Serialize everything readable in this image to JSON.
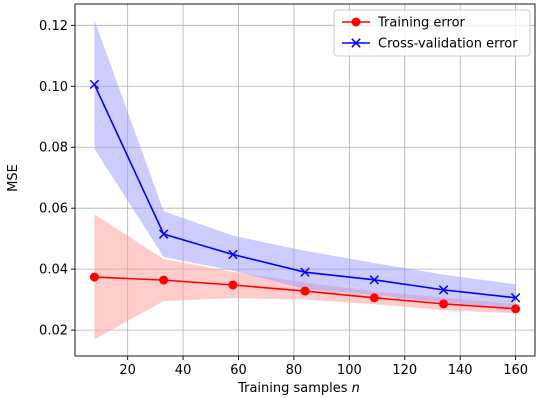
{
  "chart_data": {
    "type": "line",
    "xlabel": "Training samples",
    "xlabel_var": "n",
    "ylabel": "MSE",
    "xlim": [
      1,
      167
    ],
    "ylim": [
      0.0115,
      0.127
    ],
    "xticks": [
      20,
      40,
      60,
      80,
      100,
      120,
      140,
      160
    ],
    "yticks": [
      0.02,
      0.04,
      0.06,
      0.08,
      0.1,
      0.12
    ],
    "ytick_labels": [
      "0.02",
      "0.04",
      "0.06",
      "0.08",
      "0.10",
      "0.12"
    ],
    "grid": true,
    "legend_position": "top-right",
    "x": [
      8,
      33,
      58,
      84,
      109,
      134,
      160
    ],
    "series": [
      {
        "name": "Training error",
        "color": "#ff0000",
        "band_color": "#ff9999",
        "marker": "circle",
        "values": [
          0.0374,
          0.0364,
          0.0348,
          0.0328,
          0.0306,
          0.0286,
          0.027
        ],
        "lower": [
          0.017,
          0.0295,
          0.0305,
          0.03,
          0.0285,
          0.0265,
          0.0255
        ],
        "upper": [
          0.058,
          0.0433,
          0.0391,
          0.0356,
          0.0327,
          0.0307,
          0.0285
        ]
      },
      {
        "name": "Cross-validation error",
        "color": "#0000ff",
        "band_color": "#9999ff",
        "marker": "x",
        "values": [
          0.1006,
          0.0515,
          0.0448,
          0.039,
          0.0365,
          0.0332,
          0.0306
        ],
        "lower": [
          0.0795,
          0.044,
          0.0395,
          0.0335,
          0.0315,
          0.029,
          0.0272
        ],
        "upper": [
          0.1217,
          0.059,
          0.051,
          0.046,
          0.042,
          0.0382,
          0.035
        ]
      }
    ]
  }
}
